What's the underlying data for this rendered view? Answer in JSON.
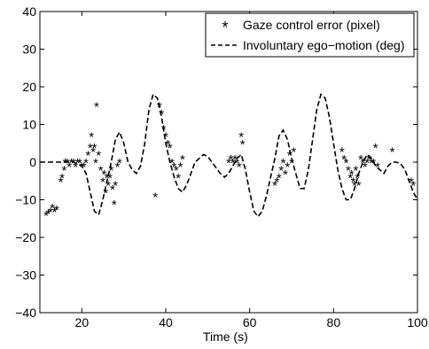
{
  "chart_data": {
    "type": "scatter",
    "xlabel": "Time (s)",
    "ylabel": "",
    "xlim": [
      10,
      100
    ],
    "ylim": [
      -40,
      40
    ],
    "xticks": [
      20,
      40,
      60,
      80,
      100
    ],
    "yticks": [
      -40,
      -30,
      -20,
      -10,
      0,
      10,
      20,
      30,
      40
    ],
    "grid": false,
    "legend_position": "top-right",
    "series": [
      {
        "name": "Gaze control error (pixel)",
        "kind": "markers",
        "marker": "*",
        "points": [
          [
            11.5,
            -14
          ],
          [
            12.0,
            -13.5
          ],
          [
            12.5,
            -13
          ],
          [
            13.0,
            -12
          ],
          [
            13.5,
            -13
          ],
          [
            14.0,
            -12.5
          ],
          [
            15.0,
            -5
          ],
          [
            15.3,
            -4
          ],
          [
            15.8,
            -2
          ],
          [
            16.0,
            0
          ],
          [
            16.5,
            0
          ],
          [
            17.0,
            -1
          ],
          [
            17.5,
            0
          ],
          [
            18.0,
            0
          ],
          [
            18.5,
            -1
          ],
          [
            19.0,
            0
          ],
          [
            19.5,
            0
          ],
          [
            20.0,
            -1
          ],
          [
            20.5,
            -1
          ],
          [
            21.0,
            0
          ],
          [
            21.5,
            2
          ],
          [
            22.0,
            4
          ],
          [
            22.3,
            7
          ],
          [
            22.7,
            3
          ],
          [
            23.0,
            4
          ],
          [
            23.3,
            0
          ],
          [
            23.5,
            15
          ],
          [
            24.0,
            2
          ],
          [
            24.5,
            -2
          ],
          [
            25.0,
            -5
          ],
          [
            25.3,
            -3
          ],
          [
            25.7,
            -8
          ],
          [
            26.0,
            -4
          ],
          [
            26.3,
            -6
          ],
          [
            26.7,
            -4
          ],
          [
            27.0,
            -2
          ],
          [
            27.3,
            -7
          ],
          [
            27.7,
            -11
          ],
          [
            28.0,
            -6
          ],
          [
            28.5,
            -1
          ],
          [
            29.0,
            0
          ],
          [
            37.5,
            -9
          ],
          [
            38.5,
            15
          ],
          [
            39.0,
            13
          ],
          [
            39.5,
            9
          ],
          [
            40.0,
            7
          ],
          [
            40.5,
            5
          ],
          [
            41.0,
            4
          ],
          [
            41.5,
            0
          ],
          [
            42.0,
            -1
          ],
          [
            42.5,
            -2
          ],
          [
            43.0,
            -4
          ],
          [
            43.5,
            -1
          ],
          [
            44.0,
            1
          ],
          [
            55.0,
            0
          ],
          [
            55.5,
            1
          ],
          [
            56.0,
            0
          ],
          [
            56.5,
            1
          ],
          [
            57.0,
            0
          ],
          [
            57.5,
            -1
          ],
          [
            58.0,
            7
          ],
          [
            58.3,
            5
          ],
          [
            66.0,
            -6
          ],
          [
            66.5,
            -5
          ],
          [
            67.0,
            -4
          ],
          [
            67.5,
            -2
          ],
          [
            68.0,
            0
          ],
          [
            68.5,
            -3
          ],
          [
            69.0,
            -1
          ],
          [
            69.5,
            2
          ],
          [
            70.0,
            0
          ],
          [
            70.5,
            3
          ],
          [
            82.0,
            3
          ],
          [
            82.5,
            1
          ],
          [
            83.0,
            0
          ],
          [
            83.5,
            -2
          ],
          [
            84.0,
            -4
          ],
          [
            84.3,
            -3
          ],
          [
            84.7,
            -5
          ],
          [
            85.0,
            -6
          ],
          [
            85.3,
            -2
          ],
          [
            85.7,
            -4
          ],
          [
            86.0,
            -6
          ],
          [
            86.5,
            1
          ],
          [
            87.0,
            0
          ],
          [
            87.5,
            -1
          ],
          [
            88.0,
            0
          ],
          [
            88.5,
            1
          ],
          [
            89.0,
            0
          ],
          [
            89.5,
            0
          ],
          [
            90.0,
            4
          ],
          [
            90.5,
            -1
          ],
          [
            94.0,
            3
          ],
          [
            98.5,
            -5
          ],
          [
            99.0,
            -6
          ]
        ]
      },
      {
        "name": "Involuntary ego−motion (deg)",
        "kind": "line",
        "style": "dashed",
        "points": [
          [
            10,
            0
          ],
          [
            11,
            0
          ],
          [
            12,
            0
          ],
          [
            13,
            0
          ],
          [
            14,
            0
          ],
          [
            15,
            0
          ],
          [
            16,
            0
          ],
          [
            17,
            0
          ],
          [
            18,
            0
          ],
          [
            19,
            -0.5
          ],
          [
            20,
            -1
          ],
          [
            21,
            -3
          ],
          [
            22,
            -8
          ],
          [
            23,
            -13
          ],
          [
            24,
            -14
          ],
          [
            25,
            -10
          ],
          [
            26,
            -5
          ],
          [
            27,
            0
          ],
          [
            28,
            6
          ],
          [
            29,
            8
          ],
          [
            30,
            5
          ],
          [
            31,
            0
          ],
          [
            32,
            -2
          ],
          [
            33,
            -3
          ],
          [
            34,
            -1
          ],
          [
            35,
            5
          ],
          [
            36,
            14
          ],
          [
            37,
            18
          ],
          [
            38,
            17
          ],
          [
            39,
            12
          ],
          [
            40,
            5
          ],
          [
            41,
            0
          ],
          [
            42,
            -4
          ],
          [
            43,
            -7
          ],
          [
            44,
            -8
          ],
          [
            45,
            -6
          ],
          [
            46,
            -3
          ],
          [
            47,
            0
          ],
          [
            48,
            1
          ],
          [
            49,
            2
          ],
          [
            50,
            1.5
          ],
          [
            51,
            0
          ],
          [
            52,
            -1.5
          ],
          [
            53,
            -3
          ],
          [
            54,
            -4
          ],
          [
            55,
            -3
          ],
          [
            56,
            -1
          ],
          [
            57,
            1
          ],
          [
            58,
            2
          ],
          [
            59,
            -2
          ],
          [
            60,
            -8
          ],
          [
            61,
            -13
          ],
          [
            62,
            -14.5
          ],
          [
            63,
            -13
          ],
          [
            64,
            -9
          ],
          [
            65,
            -4
          ],
          [
            66,
            1
          ],
          [
            67,
            7
          ],
          [
            68,
            8.5
          ],
          [
            69,
            6
          ],
          [
            70,
            1
          ],
          [
            71,
            -3
          ],
          [
            72,
            -7
          ],
          [
            73,
            -7
          ],
          [
            74,
            -2
          ],
          [
            75,
            6
          ],
          [
            76,
            14
          ],
          [
            77,
            18
          ],
          [
            78,
            17
          ],
          [
            79,
            12
          ],
          [
            80,
            5
          ],
          [
            81,
            -2
          ],
          [
            82,
            -7
          ],
          [
            83,
            -10
          ],
          [
            84,
            -10
          ],
          [
            85,
            -7
          ],
          [
            86,
            -3
          ],
          [
            87,
            0
          ],
          [
            88,
            2
          ],
          [
            89,
            1
          ],
          [
            90,
            -1
          ],
          [
            91,
            -2
          ],
          [
            92,
            -3
          ],
          [
            93,
            -1
          ],
          [
            94,
            0
          ],
          [
            95,
            0
          ],
          [
            96,
            -0.5
          ],
          [
            97,
            -2
          ],
          [
            98,
            -5
          ],
          [
            99,
            -8
          ],
          [
            100,
            -10
          ]
        ]
      }
    ]
  }
}
